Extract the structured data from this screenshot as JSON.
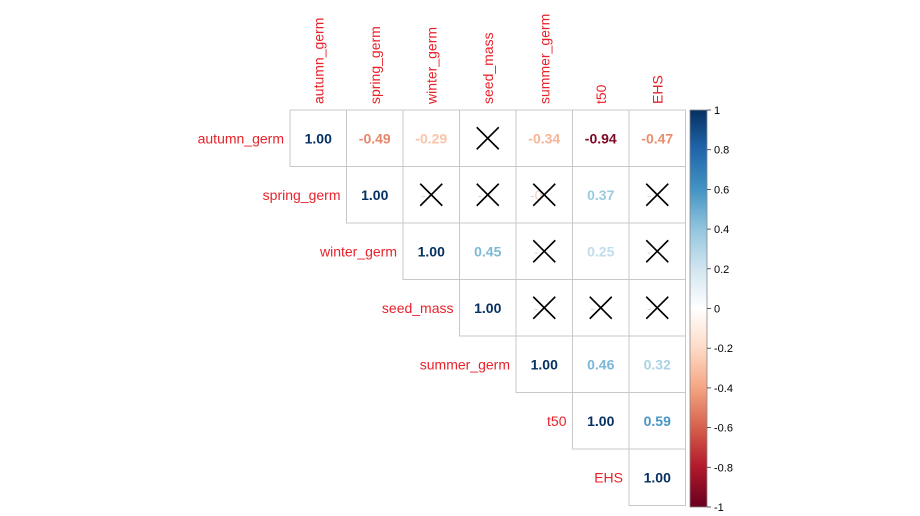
{
  "chart_data": {
    "type": "heatmap",
    "variables": [
      "autumn_germ",
      "spring_germ",
      "winter_germ",
      "seed_mass",
      "summer_germ",
      "t50",
      "EHS"
    ],
    "matrix": [
      [
        1.0,
        -0.49,
        -0.29,
        null,
        -0.34,
        -0.94,
        -0.47
      ],
      [
        null,
        1.0,
        null,
        null,
        null,
        0.37,
        null
      ],
      [
        null,
        null,
        1.0,
        0.45,
        null,
        0.25,
        null
      ],
      [
        null,
        null,
        null,
        1.0,
        null,
        null,
        null
      ],
      [
        null,
        null,
        null,
        null,
        1.0,
        0.46,
        0.32
      ],
      [
        null,
        null,
        null,
        null,
        null,
        1.0,
        0.59
      ],
      [
        null,
        null,
        null,
        null,
        null,
        null,
        1.0
      ]
    ],
    "crossed": [
      [
        0,
        3
      ],
      [
        1,
        2
      ],
      [
        1,
        3
      ],
      [
        1,
        4
      ],
      [
        1,
        6
      ],
      [
        2,
        4
      ],
      [
        2,
        6
      ],
      [
        3,
        4
      ],
      [
        3,
        5
      ],
      [
        3,
        6
      ]
    ],
    "crossed_faint_text": [
      [
        1,
        2,
        "-"
      ],
      [
        1,
        3,
        "-"
      ],
      [
        1,
        4,
        "-0"
      ],
      [
        1,
        6,
        "-"
      ],
      [
        2,
        4,
        "-"
      ],
      [
        2,
        6,
        "-"
      ],
      [
        3,
        4,
        "-"
      ],
      [
        3,
        5,
        "-"
      ],
      [
        3,
        6,
        "-"
      ]
    ],
    "colorbar": {
      "range": [
        -1,
        1
      ],
      "ticks": [
        "1",
        "0.8",
        "0.6",
        "0.4",
        "0.2",
        "0",
        "-0.2",
        "-0.4",
        "-0.6",
        "-0.8",
        "-1"
      ]
    },
    "label_color": "#e8212a",
    "palette": [
      "#67001f",
      "#b2182b",
      "#d6604d",
      "#f4a582",
      "#fddbc7",
      "#ffffff",
      "#d1e5f0",
      "#92c5de",
      "#4393c3",
      "#2166ac",
      "#053061"
    ],
    "title": "",
    "xlabel": "",
    "ylabel": ""
  }
}
